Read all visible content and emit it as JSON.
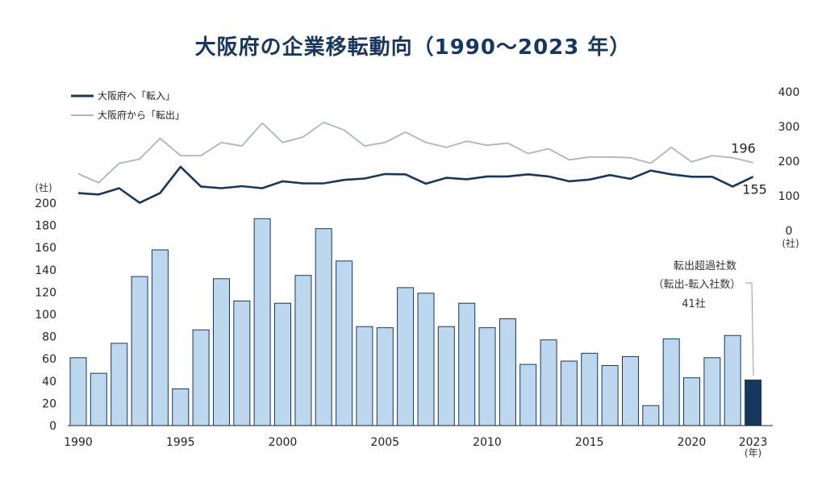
{
  "title": "大阪府の企業移転動向（1990～2023 年）",
  "chart_data": {
    "type": "bar+line",
    "years": [
      1990,
      1991,
      1992,
      1993,
      1994,
      1995,
      1996,
      1997,
      1998,
      1999,
      2000,
      2001,
      2002,
      2003,
      2004,
      2005,
      2006,
      2007,
      2008,
      2009,
      2010,
      2011,
      2012,
      2013,
      2014,
      2015,
      2016,
      2017,
      2018,
      2019,
      2020,
      2021,
      2022,
      2023
    ],
    "x_tick_labels": [
      "1990",
      "1995",
      "2000",
      "2005",
      "2010",
      "2015",
      "2020",
      "2023"
    ],
    "x_unit": "(年)",
    "bar_series": {
      "values": [
        61,
        47,
        74,
        134,
        158,
        33,
        86,
        132,
        112,
        186,
        110,
        135,
        177,
        148,
        89,
        88,
        124,
        119,
        89,
        110,
        88,
        96,
        55,
        77,
        58,
        65,
        54,
        62,
        18,
        78,
        43,
        61,
        81,
        41
      ],
      "ylim": [
        0,
        200
      ],
      "y_ticks": [
        0,
        20,
        40,
        60,
        80,
        100,
        120,
        140,
        160,
        180,
        200
      ],
      "y_unit": "(社)",
      "color": "#bdd7ee",
      "highlight_color": "#17375e"
    },
    "line_axis": {
      "ylim": [
        0,
        400
      ],
      "y_ticks": [
        0,
        100,
        200,
        300,
        400
      ],
      "y_unit": "(社)"
    },
    "line_series": [
      {
        "name": "大阪府へ「転入」",
        "color": "#17375e",
        "values": [
          108,
          104,
          122,
          80,
          108,
          184,
          127,
          122,
          128,
          122,
          142,
          136,
          136,
          146,
          150,
          163,
          162,
          135,
          152,
          148,
          156,
          156,
          162,
          156,
          142,
          147,
          160,
          149,
          173,
          162,
          155,
          155,
          127,
          155
        ],
        "end_label": "155"
      },
      {
        "name": "大阪府から「転出」",
        "color": "#aab4c2",
        "values": [
          164,
          138,
          194,
          206,
          266,
          216,
          216,
          254,
          244,
          310,
          254,
          270,
          312,
          290,
          244,
          254,
          284,
          254,
          240,
          258,
          246,
          252,
          222,
          236,
          204,
          212,
          212,
          210,
          194,
          240,
          198,
          216,
          210,
          196
        ],
        "end_label": "196"
      }
    ],
    "annotation": {
      "line1": "転出超過社数",
      "line2": "（転出-転入社数）",
      "line3": "41社"
    }
  }
}
